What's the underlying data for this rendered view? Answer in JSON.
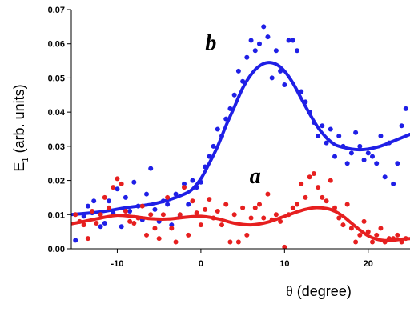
{
  "chart_data": {
    "type": "scatter",
    "title": "",
    "xlabel_symbol": "θ",
    "xlabel_rest": " (degree)",
    "ylabel_main": "E",
    "ylabel_sub": "1",
    "ylabel_rest": " (arb. units)",
    "xlim": [
      -15.5,
      25
    ],
    "ylim": [
      0,
      0.07
    ],
    "x_ticks": [
      -10,
      0,
      10,
      20
    ],
    "y_ticks": [
      0,
      0.01,
      0.02,
      0.03,
      0.04,
      0.05,
      0.06,
      0.07
    ],
    "x_tick_labels": [
      "-10",
      "0",
      "10",
      "20"
    ],
    "y_tick_labels": [
      "0.00",
      "0.01",
      "0.02",
      "0.03",
      "0.04",
      "0.05",
      "0.06",
      "0.07"
    ],
    "grid": false,
    "annotations": [
      {
        "text": "b",
        "x": 1.2,
        "y": 0.0605
      },
      {
        "text": "a",
        "x": 6.5,
        "y": 0.0215
      }
    ],
    "series": [
      {
        "name": "b",
        "color": "#1f1fe6",
        "points": [
          [
            -15,
            0.0025
          ],
          [
            -14,
            0.0095
          ],
          [
            -13.5,
            0.0125
          ],
          [
            -13,
            0.0105
          ],
          [
            -12.8,
            0.014
          ],
          [
            -12,
            0.0065
          ],
          [
            -11.5,
            0.0075
          ],
          [
            -11,
            0.014
          ],
          [
            -10.5,
            0.0105
          ],
          [
            -10,
            0.0175
          ],
          [
            -9.5,
            0.0065
          ],
          [
            -9,
            0.015
          ],
          [
            -8.5,
            0.011
          ],
          [
            -8,
            0.0195
          ],
          [
            -7.5,
            0.0125
          ],
          [
            -7,
            0.0085
          ],
          [
            -6.5,
            0.016
          ],
          [
            -6,
            0.0235
          ],
          [
            -5.5,
            0.0115
          ],
          [
            -5,
            0.008
          ],
          [
            -4.5,
            0.014
          ],
          [
            -4,
            0.013
          ],
          [
            -3.5,
            0.007
          ],
          [
            -3,
            0.016
          ],
          [
            -2.5,
            0.0095
          ],
          [
            -2,
            0.019
          ],
          [
            -1.5,
            0.013
          ],
          [
            -1,
            0.02
          ],
          [
            -0.5,
            0.018
          ],
          [
            0,
            0.0195
          ],
          [
            0.5,
            0.024
          ],
          [
            1,
            0.027
          ],
          [
            1.5,
            0.03
          ],
          [
            2,
            0.035
          ],
          [
            2.5,
            0.033
          ],
          [
            3,
            0.038
          ],
          [
            3.5,
            0.041
          ],
          [
            4,
            0.045
          ],
          [
            4.5,
            0.052
          ],
          [
            5,
            0.049
          ],
          [
            5.5,
            0.056
          ],
          [
            6,
            0.061
          ],
          [
            6.5,
            0.058
          ],
          [
            7,
            0.06
          ],
          [
            7.5,
            0.065
          ],
          [
            8,
            0.062
          ],
          [
            8.5,
            0.05
          ],
          [
            9,
            0.058
          ],
          [
            9.5,
            0.052
          ],
          [
            10,
            0.048
          ],
          [
            10.5,
            0.061
          ],
          [
            11,
            0.061
          ],
          [
            11.5,
            0.058
          ],
          [
            12,
            0.046
          ],
          [
            12.5,
            0.043
          ],
          [
            13,
            0.04
          ],
          [
            13.5,
            0.037
          ],
          [
            14,
            0.033
          ],
          [
            14.5,
            0.036
          ],
          [
            15,
            0.031
          ],
          [
            15.5,
            0.035
          ],
          [
            16,
            0.027
          ],
          [
            16.5,
            0.033
          ],
          [
            17,
            0.03
          ],
          [
            17.5,
            0.025
          ],
          [
            18,
            0.028
          ],
          [
            18.5,
            0.034
          ],
          [
            19,
            0.03
          ],
          [
            19.5,
            0.026
          ],
          [
            20,
            0.028
          ],
          [
            20.5,
            0.027
          ],
          [
            21,
            0.025
          ],
          [
            21.5,
            0.033
          ],
          [
            22,
            0.021
          ],
          [
            22.5,
            0.031
          ],
          [
            23,
            0.019
          ],
          [
            23.5,
            0.025
          ],
          [
            24,
            0.036
          ],
          [
            24.5,
            0.041
          ]
        ],
        "fit": [
          [
            -15.5,
            0.01
          ],
          [
            -12,
            0.0108
          ],
          [
            -9,
            0.012
          ],
          [
            -6,
            0.013
          ],
          [
            -4,
            0.0142
          ],
          [
            -2,
            0.016
          ],
          [
            -1,
            0.0175
          ],
          [
            0,
            0.0205
          ],
          [
            1,
            0.025
          ],
          [
            2,
            0.03
          ],
          [
            3,
            0.036
          ],
          [
            4,
            0.0415
          ],
          [
            5,
            0.047
          ],
          [
            6,
            0.051
          ],
          [
            7,
            0.0535
          ],
          [
            8,
            0.0545
          ],
          [
            9,
            0.054
          ],
          [
            10,
            0.052
          ],
          [
            11,
            0.0485
          ],
          [
            12,
            0.044
          ],
          [
            13,
            0.0395
          ],
          [
            14,
            0.0355
          ],
          [
            15,
            0.0325
          ],
          [
            16,
            0.0305
          ],
          [
            17,
            0.0297
          ],
          [
            18,
            0.0292
          ],
          [
            19,
            0.029
          ],
          [
            20,
            0.0292
          ],
          [
            21,
            0.0297
          ],
          [
            22,
            0.0305
          ],
          [
            23,
            0.0315
          ],
          [
            24,
            0.0325
          ],
          [
            25,
            0.0335
          ]
        ]
      },
      {
        "name": "a",
        "color": "#e61f1f",
        "points": [
          [
            -15,
            0.01
          ],
          [
            -14.5,
            0.008
          ],
          [
            -14,
            0.007
          ],
          [
            -13.5,
            0.003
          ],
          [
            -13,
            0.011
          ],
          [
            -12.5,
            0.0075
          ],
          [
            -12,
            0.01
          ],
          [
            -11.5,
            0.015
          ],
          [
            -11,
            0.012
          ],
          [
            -10.5,
            0.018
          ],
          [
            -10,
            0.0205
          ],
          [
            -9.5,
            0.019
          ],
          [
            -9,
            0.011
          ],
          [
            -8.5,
            0.008
          ],
          [
            -8,
            0.0075
          ],
          [
            -7.5,
            0.009
          ],
          [
            -7,
            0.0125
          ],
          [
            -6.5,
            0.004
          ],
          [
            -6,
            0.01
          ],
          [
            -5.5,
            0.006
          ],
          [
            -5,
            0.003
          ],
          [
            -4.5,
            0.01
          ],
          [
            -4,
            0.015
          ],
          [
            -3.5,
            0.006
          ],
          [
            -3,
            0.002
          ],
          [
            -2.5,
            0.01
          ],
          [
            -2,
            0.018
          ],
          [
            -1.5,
            0.004
          ],
          [
            -1,
            0.014
          ],
          [
            -0.5,
            0.0105
          ],
          [
            0,
            0.007
          ],
          [
            0.5,
            0.0115
          ],
          [
            1,
            0.0145
          ],
          [
            1.5,
            0.009
          ],
          [
            2,
            0.011
          ],
          [
            2.5,
            0.007
          ],
          [
            3,
            0.013
          ],
          [
            3.5,
            0.002
          ],
          [
            4,
            0.01
          ],
          [
            4.5,
            0.002
          ],
          [
            5,
            0.012
          ],
          [
            5.5,
            0.004
          ],
          [
            6,
            0.009
          ],
          [
            6.5,
            0.012
          ],
          [
            7,
            0.013
          ],
          [
            7.5,
            0.009
          ],
          [
            8,
            0.016
          ],
          [
            8.5,
            0.0085
          ],
          [
            9,
            0.01
          ],
          [
            9.5,
            0.008
          ],
          [
            10,
            0.0005
          ],
          [
            10.5,
            0.01
          ],
          [
            11,
            0.012
          ],
          [
            11.5,
            0.013
          ],
          [
            12,
            0.019
          ],
          [
            12.5,
            0.015
          ],
          [
            13,
            0.021
          ],
          [
            13.5,
            0.022
          ],
          [
            14,
            0.018
          ],
          [
            14.5,
            0.015
          ],
          [
            15,
            0.014
          ],
          [
            15.5,
            0.02
          ],
          [
            16,
            0.012
          ],
          [
            16.5,
            0.009
          ],
          [
            17,
            0.007
          ],
          [
            17.5,
            0.013
          ],
          [
            18,
            0.006
          ],
          [
            18.5,
            0.002
          ],
          [
            19,
            0.004
          ],
          [
            19.5,
            0.008
          ],
          [
            20,
            0.005
          ],
          [
            20.5,
            0.002
          ],
          [
            21,
            0.004
          ],
          [
            21.5,
            0.006
          ],
          [
            22,
            0.002
          ],
          [
            22.5,
            0.003
          ],
          [
            23,
            0.003
          ],
          [
            23.5,
            0.004
          ],
          [
            24,
            0.002
          ],
          [
            24.5,
            0.003
          ]
        ],
        "fit": [
          [
            -15.5,
            0.0073
          ],
          [
            -14,
            0.008
          ],
          [
            -12,
            0.009
          ],
          [
            -10,
            0.0098
          ],
          [
            -8,
            0.0094
          ],
          [
            -6,
            0.0088
          ],
          [
            -4,
            0.0087
          ],
          [
            -2,
            0.0092
          ],
          [
            0,
            0.0095
          ],
          [
            2,
            0.0088
          ],
          [
            4,
            0.0075
          ],
          [
            6,
            0.007
          ],
          [
            8,
            0.0078
          ],
          [
            10,
            0.0095
          ],
          [
            12,
            0.0112
          ],
          [
            13.5,
            0.012
          ],
          [
            15,
            0.0118
          ],
          [
            16,
            0.011
          ],
          [
            17,
            0.0095
          ],
          [
            18,
            0.0075
          ],
          [
            19,
            0.0055
          ],
          [
            20,
            0.0038
          ],
          [
            21,
            0.0028
          ],
          [
            22,
            0.0024
          ],
          [
            23,
            0.0025
          ],
          [
            24,
            0.0028
          ],
          [
            25,
            0.003
          ]
        ]
      }
    ]
  }
}
